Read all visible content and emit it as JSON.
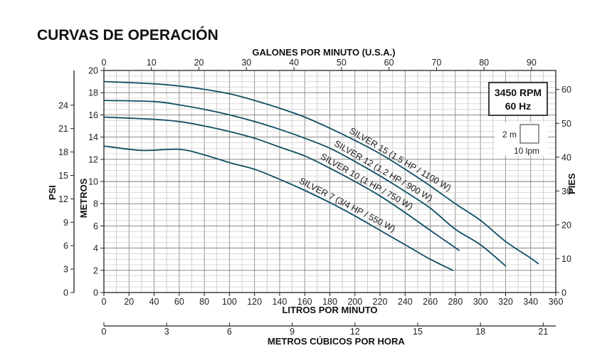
{
  "page_title": "CURVAS DE OPERACIÓN",
  "chart_data": {
    "type": "line",
    "title": "CURVAS DE OPERACIÓN",
    "xlabel": "LITROS POR MINUTO",
    "ylabel": "METROS",
    "xlim": [
      0,
      360
    ],
    "ylim": [
      0,
      20
    ],
    "grid": true,
    "x_ticks": [
      0,
      20,
      40,
      60,
      80,
      100,
      120,
      140,
      160,
      180,
      200,
      220,
      240,
      260,
      280,
      300,
      320,
      340,
      360
    ],
    "y_ticks": [
      0,
      2,
      4,
      6,
      8,
      10,
      12,
      14,
      16,
      18,
      20
    ],
    "top_axis": {
      "label": "GALONES POR MINUTO (U.S.A.)",
      "ticks": [
        0,
        10,
        20,
        30,
        40,
        50,
        60,
        70,
        80,
        90
      ]
    },
    "right_axis": {
      "label": "PIES",
      "ticks": [
        0,
        10,
        20,
        30,
        40,
        50,
        60
      ]
    },
    "left_outer_axis": {
      "label": "PSI",
      "ticks": [
        0,
        3,
        6,
        9,
        12,
        15,
        18,
        21,
        24
      ]
    },
    "bottom_outer_axis": {
      "label": "METROS CÚBICOS POR HORA",
      "ticks": [
        0,
        3,
        6,
        9,
        12,
        15,
        18,
        21
      ]
    },
    "series": [
      {
        "name": "SILVER 15 (1.5 HP / 1100 W)",
        "x": [
          0,
          40,
          60,
          80,
          100,
          120,
          140,
          160,
          180,
          200,
          220,
          240,
          260,
          280,
          300,
          320,
          340,
          346
        ],
        "y": [
          19.0,
          18.8,
          18.6,
          18.3,
          17.9,
          17.3,
          16.6,
          15.8,
          14.8,
          13.7,
          12.5,
          11.1,
          9.6,
          8.0,
          6.5,
          4.6,
          3.1,
          2.6
        ]
      },
      {
        "name": "SILVER 12 (1.2 HP / 900 W)",
        "x": [
          0,
          40,
          60,
          80,
          100,
          120,
          140,
          160,
          180,
          200,
          220,
          240,
          260,
          280,
          300,
          320
        ],
        "y": [
          17.3,
          17.2,
          16.9,
          16.5,
          16.0,
          15.4,
          14.7,
          13.9,
          13.0,
          11.8,
          10.5,
          9.1,
          7.6,
          5.7,
          4.3,
          2.4
        ]
      },
      {
        "name": "SILVER 10 (1 HP / 750 W)",
        "x": [
          0,
          40,
          60,
          80,
          100,
          120,
          140,
          160,
          180,
          200,
          220,
          240,
          260,
          283
        ],
        "y": [
          15.8,
          15.6,
          15.4,
          15.0,
          14.5,
          13.9,
          13.1,
          12.3,
          11.2,
          10.0,
          8.7,
          7.2,
          5.6,
          3.8
        ]
      },
      {
        "name": "SILVER 7 (3/4 HP / 550 W)",
        "x": [
          0,
          30,
          60,
          80,
          100,
          120,
          140,
          160,
          180,
          200,
          220,
          240,
          260,
          278
        ],
        "y": [
          13.2,
          12.8,
          12.9,
          12.4,
          11.7,
          11.1,
          10.2,
          9.2,
          8.1,
          6.9,
          5.6,
          4.3,
          3.0,
          2.0
        ]
      }
    ],
    "annotations": {
      "rpm": "3450 RPM",
      "hz": "60 Hz",
      "scale_m": "2 m",
      "scale_lpm": "10 lpm"
    }
  }
}
